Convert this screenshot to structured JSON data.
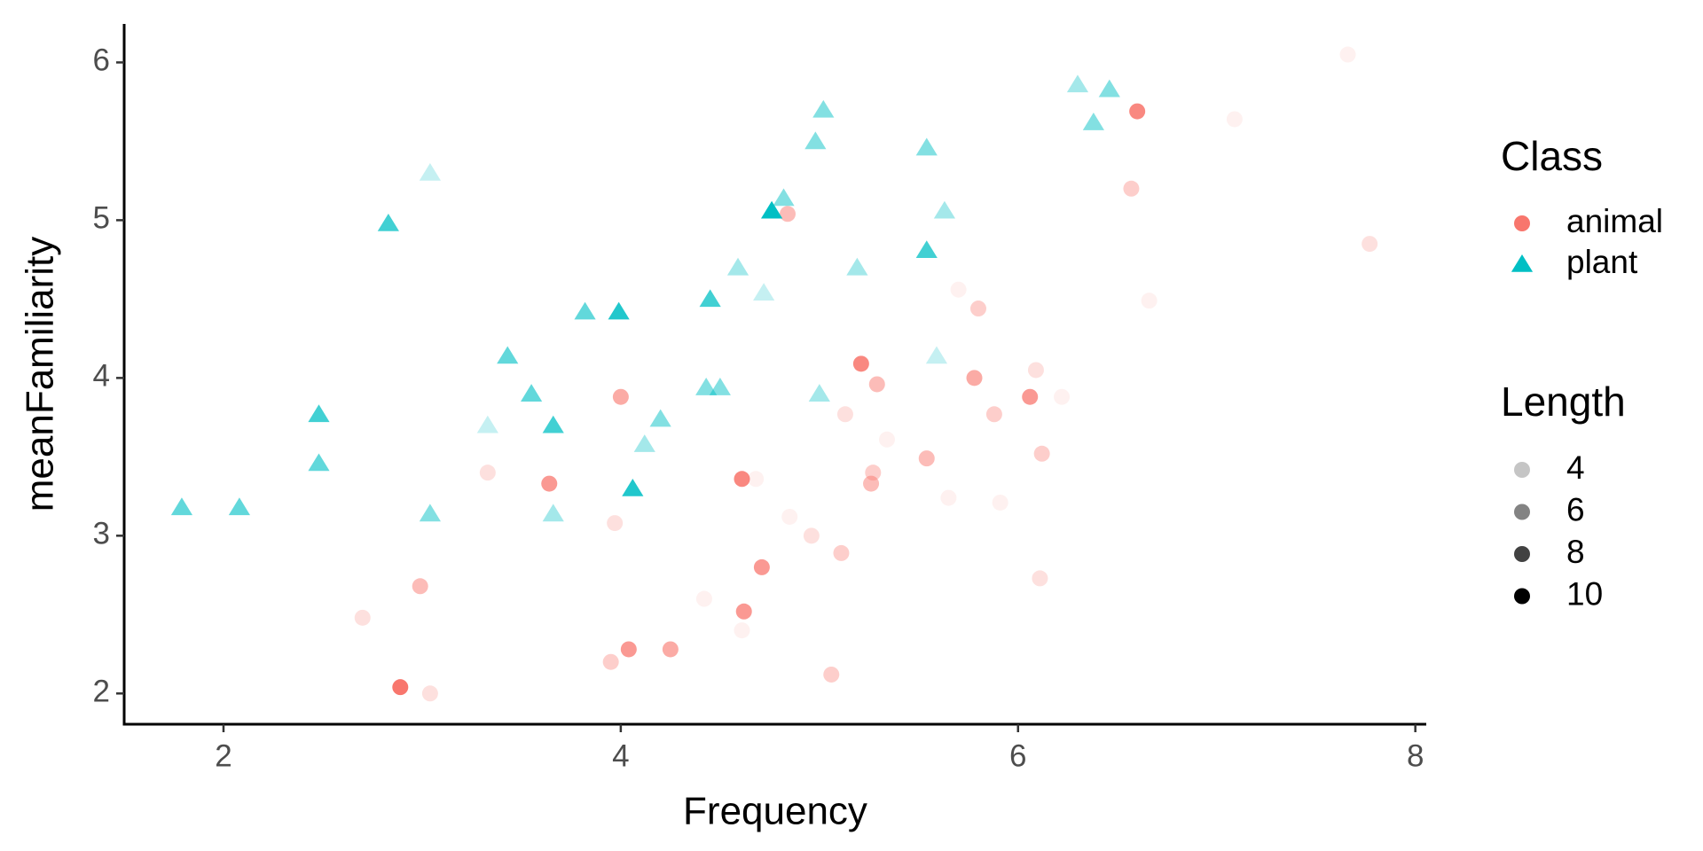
{
  "chart_data": {
    "type": "scatter",
    "xlabel": "Frequency",
    "ylabel": "meanFamiliarity",
    "xlim": [
      1.5,
      8.055
    ],
    "ylim": [
      1.805,
      6.244
    ],
    "xticks": [
      2,
      4,
      6,
      8
    ],
    "yticks": [
      2,
      3,
      4,
      5,
      6
    ],
    "alpha_range": [
      0.1,
      1
    ],
    "legend_position": "right",
    "class_legend_title": "Class",
    "length_legend": {
      "title": "Length",
      "values": [
        4,
        6,
        8,
        10
      ],
      "color": "#000000"
    },
    "series": [
      {
        "name": "animal",
        "color": "#F8766D",
        "shape": "circle",
        "x": [
          2.7,
          2.89,
          2.99,
          3.04,
          3.33,
          3.64,
          3.97,
          4.0,
          3.95,
          4.04,
          4.25,
          4.42,
          4.61,
          4.62,
          4.61,
          4.68,
          4.71,
          4.85,
          4.84,
          4.96,
          5.06,
          5.11,
          5.13,
          5.21,
          5.29,
          5.27,
          5.26,
          5.34,
          5.54,
          5.65,
          5.7,
          5.78,
          5.8,
          5.88,
          5.91,
          6.06,
          6.09,
          6.11,
          6.12,
          6.22,
          6.57,
          6.6,
          6.66,
          7.09,
          7.66,
          7.77
        ],
        "y": [
          2.48,
          2.04,
          2.68,
          2.0,
          3.4,
          3.33,
          3.08,
          3.88,
          2.2,
          2.28,
          2.28,
          2.6,
          2.4,
          2.52,
          3.36,
          3.36,
          2.8,
          3.12,
          5.04,
          3.0,
          2.12,
          2.89,
          3.77,
          4.09,
          3.96,
          3.4,
          3.33,
          3.61,
          3.49,
          3.24,
          4.56,
          4.0,
          4.44,
          3.77,
          3.21,
          3.88,
          4.05,
          2.73,
          3.52,
          3.88,
          5.2,
          5.69,
          4.49,
          5.64,
          6.05,
          4.85
        ],
        "length": [
          4,
          10,
          6,
          4,
          4,
          8,
          4,
          7,
          5,
          8,
          7,
          3,
          3,
          8,
          9,
          3,
          8,
          3,
          6,
          4,
          5,
          5,
          4,
          9,
          6,
          5,
          6,
          3,
          6,
          3,
          3,
          7,
          5,
          5,
          3,
          8,
          4,
          4,
          5,
          3,
          5,
          9,
          3,
          3,
          3,
          4
        ]
      },
      {
        "name": "plant",
        "color": "#00BFC4",
        "shape": "triangle",
        "x": [
          1.79,
          2.08,
          2.48,
          2.48,
          2.83,
          3.04,
          3.04,
          3.33,
          3.43,
          3.55,
          3.66,
          3.66,
          3.82,
          3.99,
          4.06,
          4.12,
          4.2,
          4.43,
          4.45,
          4.5,
          4.59,
          4.72,
          4.76,
          4.82,
          5.0,
          4.98,
          5.02,
          5.19,
          5.54,
          5.54,
          5.59,
          5.63,
          6.3,
          6.46,
          6.38
        ],
        "y": [
          3.18,
          3.18,
          3.77,
          3.46,
          4.98,
          5.3,
          3.14,
          3.7,
          4.14,
          3.9,
          3.7,
          3.14,
          4.42,
          4.42,
          3.3,
          3.58,
          3.74,
          3.94,
          4.5,
          3.94,
          4.7,
          4.54,
          5.06,
          5.14,
          3.9,
          5.5,
          5.7,
          4.7,
          4.81,
          5.46,
          4.14,
          5.06,
          5.86,
          5.83,
          5.62
        ],
        "length": [
          7,
          7,
          8,
          7,
          8,
          4,
          6,
          4,
          7,
          7,
          8,
          5,
          7,
          9,
          9,
          5,
          6,
          6,
          8,
          6,
          5,
          4,
          10,
          6,
          5,
          6,
          6,
          5,
          8,
          6,
          4,
          5,
          5,
          6,
          6
        ]
      }
    ]
  }
}
